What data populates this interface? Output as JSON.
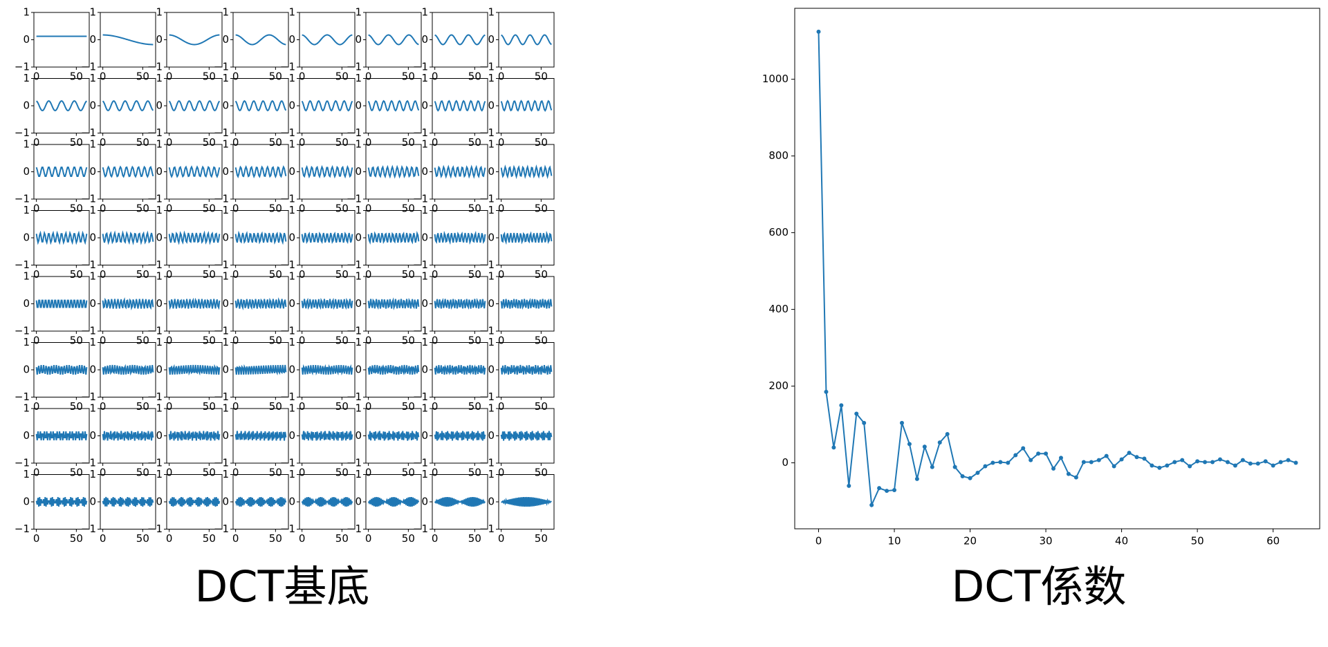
{
  "chart_data": [
    {
      "type": "dct-basis",
      "title": "DCT基底",
      "samples": 64,
      "rows": 8,
      "cols": 8,
      "color": "#1f77b4",
      "xlim": [
        -3.15,
        66.15
      ],
      "ylim": [
        -1,
        1
      ],
      "xticks": [
        0,
        50
      ],
      "yticks": [
        {
          "value": -1,
          "label": "−1"
        },
        0,
        1
      ]
    },
    {
      "type": "line",
      "title": "DCT係数",
      "color": "#1f77b4",
      "marker": "circle",
      "x": [
        0,
        1,
        2,
        3,
        4,
        5,
        6,
        7,
        8,
        9,
        10,
        11,
        12,
        13,
        14,
        15,
        16,
        17,
        18,
        19,
        20,
        21,
        22,
        23,
        24,
        25,
        26,
        27,
        28,
        29,
        30,
        31,
        32,
        33,
        34,
        35,
        36,
        37,
        38,
        39,
        40,
        41,
        42,
        43,
        44,
        45,
        46,
        47,
        48,
        49,
        50,
        51,
        52,
        53,
        54,
        55,
        56,
        57,
        58,
        59,
        60,
        61,
        62,
        63
      ],
      "values": [
        1124,
        185,
        40,
        150,
        -60,
        128,
        104,
        -110,
        -66,
        -73,
        -71,
        104,
        49,
        -42,
        42,
        -11,
        53,
        75,
        -11,
        -35,
        -40,
        -26,
        -9,
        0,
        2,
        0,
        20,
        38,
        7,
        24,
        24,
        -15,
        13,
        -29,
        -38,
        2,
        2,
        7,
        18,
        -9,
        9,
        26,
        15,
        11,
        -7,
        -13,
        -7,
        2,
        7,
        -9,
        4,
        2,
        2,
        9,
        2,
        -7,
        7,
        -2,
        -2,
        4,
        -7,
        2,
        7,
        0
      ],
      "xlim": [
        -3.15,
        66.15
      ],
      "ylim": [
        -172,
        1185
      ],
      "xticks": [
        0,
        10,
        20,
        30,
        40,
        50,
        60
      ],
      "yticks": [
        0,
        200,
        400,
        600,
        800,
        1000
      ]
    }
  ]
}
